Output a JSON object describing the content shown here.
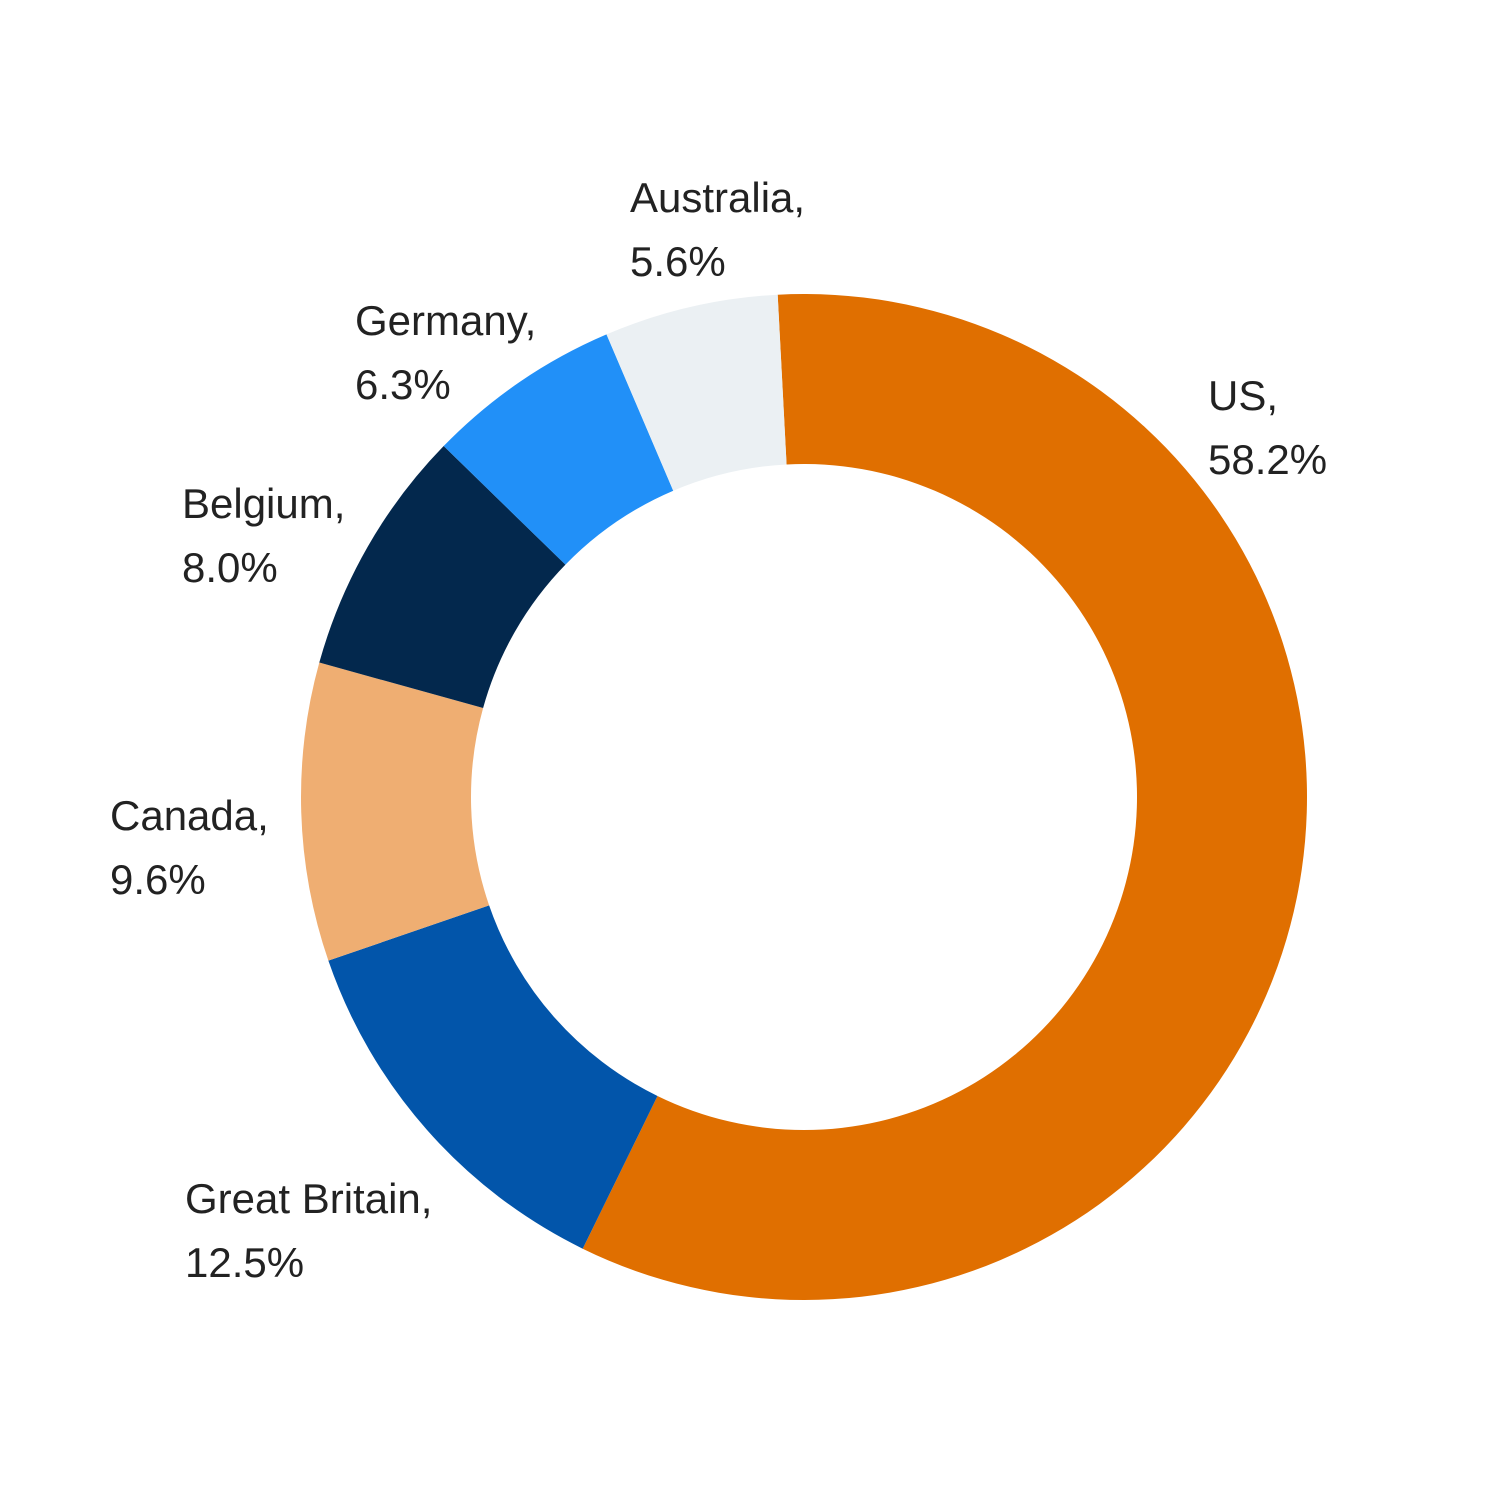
{
  "chart_data": {
    "type": "donut",
    "categories": [
      "US,",
      "Great Britain,",
      "Canada,",
      "Belgium,",
      "Germany,",
      "Australia,"
    ],
    "values": [
      58.2,
      12.5,
      9.6,
      8.0,
      6.3,
      5.6
    ],
    "value_labels": [
      "58.2%",
      "12.5%",
      "9.6%",
      "8.0%",
      "6.3%",
      "5.6%"
    ],
    "colors": [
      "#e06f00",
      "#0255aa",
      "#efae72",
      "#03284d",
      "#2190f8",
      "#ebf0f3"
    ]
  }
}
